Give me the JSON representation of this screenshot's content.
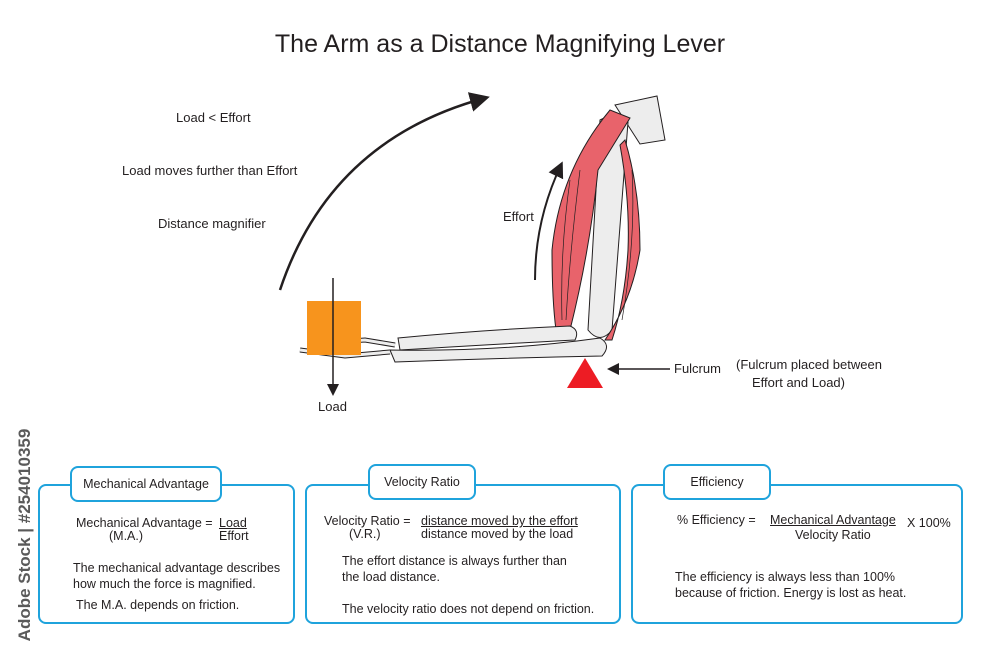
{
  "title": "The Arm as a Distance Magnifying Lever",
  "notes": [
    "Load < Effort",
    "Load moves further than Effort",
    "Distance magnifier"
  ],
  "labels": {
    "effort": "Effort",
    "load": "Load",
    "fulcrum": "Fulcrum",
    "fulcrum_note_line1": "(Fulcrum placed between",
    "fulcrum_note_line2": "Effort and Load)"
  },
  "colors": {
    "muscle": "#e8636b",
    "load_block": "#f7941d",
    "fulcrum": "#ed1c24",
    "box_border": "#1fa3dc",
    "bone": "#ededed"
  },
  "boxes": [
    {
      "tab": "Mechanical Advantage",
      "lhs": "Mechanical Advantage =",
      "abbr": "(M.A.)",
      "numerator": "Load",
      "denominator": "Effort",
      "text1_line1": "The mechanical advantage describes",
      "text1_line2": "how much the force is magnified.",
      "text2": "The M.A. depends on friction."
    },
    {
      "tab": "Velocity Ratio",
      "lhs": "Velocity Ratio  =",
      "abbr": "(V.R.)",
      "numerator": "distance moved by the effort",
      "denominator": "distance moved by the load",
      "text1_line1": "The effort distance is always further than",
      "text1_line2": "the load distance.",
      "text2": "The velocity ratio does not depend on friction."
    },
    {
      "tab": "Efficiency",
      "lhs": "% Efficiency   =",
      "numerator": "Mechanical Advantage",
      "denominator": "Velocity Ratio",
      "multiplier": "X  100%",
      "text1_line1": "The efficiency is always less than 100%",
      "text1_line2": "because of friction. Energy is lost as heat."
    }
  ],
  "watermark": "Adobe Stock | #254010359"
}
